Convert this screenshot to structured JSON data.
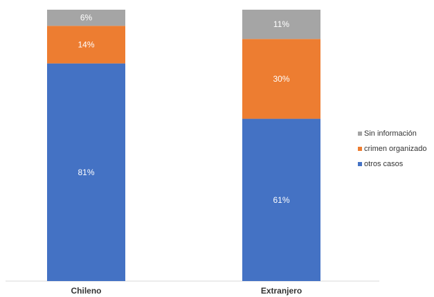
{
  "chart_data": {
    "type": "bar",
    "stacked": true,
    "categories": [
      "Chileno",
      "Extranjero"
    ],
    "series": [
      {
        "name": "otros casos",
        "values": [
          81,
          61
        ],
        "labels": [
          "81%",
          "61%"
        ],
        "color": "#4472c4"
      },
      {
        "name": "crimen organizado",
        "values": [
          14,
          30
        ],
        "labels": [
          "14%",
          "30%"
        ],
        "color": "#ed7d31"
      },
      {
        "name": "Sin información",
        "values": [
          6,
          11
        ],
        "labels": [
          "6%",
          "11%"
        ],
        "color": "#a5a5a5"
      }
    ],
    "legend_order": [
      "Sin información",
      "crimen organizado",
      "otros casos"
    ],
    "legend_position": "right",
    "grid": false,
    "ylim": [
      0,
      100
    ]
  }
}
